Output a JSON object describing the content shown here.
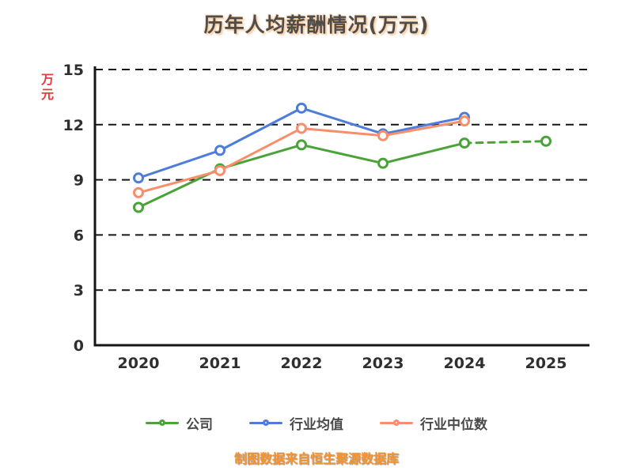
{
  "title": "历年人均薪酬情况(万元)",
  "y_axis_unit": "万元",
  "footer": "制图数据来自恒生聚源数据库",
  "colors": {
    "title_text": "#4d4d4d",
    "y_unit_text": "#e23b3b",
    "footer_text": "#f79432",
    "axis_and_grid": "#161616",
    "tick_text": "#2f2f2f",
    "company_green": "#4aa338",
    "industry_avg_blue": "#4e7cdb",
    "industry_median_orange": "#f88e6b"
  },
  "chart_data": {
    "type": "line",
    "x": [
      "2020",
      "2021",
      "2022",
      "2023",
      "2024",
      "2025"
    ],
    "ylim": [
      0,
      15
    ],
    "yticks": [
      0,
      3,
      6,
      9,
      12,
      15
    ],
    "grid": true,
    "legend_position": "bottom",
    "title": "历年人均薪酬情况(万元)",
    "ylabel": "万元",
    "series": [
      {
        "name": "公司",
        "color": "#4aa338",
        "values": [
          7.5,
          9.6,
          10.9,
          9.9,
          11.0,
          11.1
        ],
        "dashed_after_index": 4
      },
      {
        "name": "行业均值",
        "color": "#4e7cdb",
        "values": [
          9.1,
          10.6,
          12.9,
          11.5,
          12.4,
          null
        ]
      },
      {
        "name": "行业中位数",
        "color": "#f88e6b",
        "values": [
          8.3,
          9.5,
          11.8,
          11.4,
          12.2,
          null
        ]
      }
    ]
  }
}
